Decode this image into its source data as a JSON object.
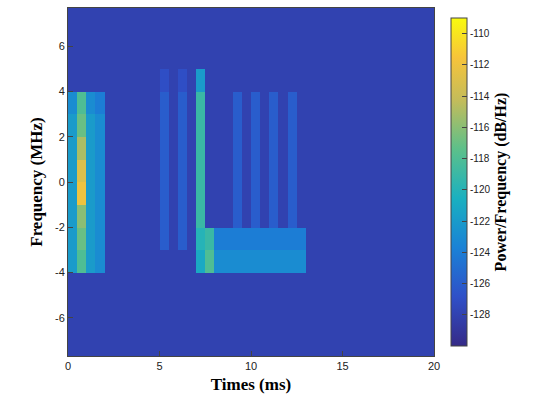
{
  "chart_data": {
    "type": "heatmap",
    "x_label": "Times (ms)",
    "y_label": "Frequency (MHz)",
    "colorbar_title": "Power/Frequency (dB/Hz)",
    "xlim": [
      0,
      20
    ],
    "xticks": [
      0,
      5,
      10,
      15,
      20
    ],
    "ylim": [
      -7.68,
      7.68
    ],
    "yticks": [
      -6,
      -4,
      -2,
      0,
      2,
      4,
      6
    ],
    "zlim": [
      -130,
      -109
    ],
    "zticks": [
      -128,
      -126,
      -124,
      -122,
      -120,
      -118,
      -116,
      -114,
      -112,
      -110
    ],
    "x": [
      0.25,
      0.75,
      1.25,
      1.75,
      2.25,
      2.75,
      3.25,
      3.75,
      4.25,
      4.75,
      5.25,
      5.75,
      6.25,
      6.75,
      7.25,
      7.75,
      8.25,
      8.75,
      9.25,
      9.75,
      10.25,
      10.75,
      11.25,
      11.75,
      12.25,
      12.75,
      13.25,
      13.75,
      14.25,
      14.75,
      15.25,
      15.75,
      16.25,
      16.75,
      17.25,
      17.75,
      18.25,
      18.75,
      19.25,
      19.75
    ],
    "y": [
      -7.5,
      -6.5,
      -5.5,
      -4.5,
      -3.5,
      -2.5,
      -1.5,
      -0.5,
      0.5,
      1.5,
      2.5,
      3.5,
      4.5,
      5.5,
      6.5,
      7.5
    ],
    "z": [
      [
        -128,
        -128,
        -128,
        -128,
        -128,
        -128,
        -128,
        -128,
        -128,
        -128,
        -128,
        -128,
        -128,
        -128,
        -128,
        -128,
        -128,
        -128,
        -128,
        -128,
        -128,
        -128,
        -128,
        -128,
        -128,
        -128,
        -128,
        -128,
        -128,
        -128,
        -128,
        -128,
        -128,
        -128,
        -128,
        -128,
        -128,
        -128,
        -128,
        -128
      ],
      [
        -128,
        -128,
        -128,
        -128,
        -128,
        -128,
        -128,
        -128,
        -128,
        -128,
        -128,
        -128,
        -128,
        -128,
        -128,
        -128,
        -128,
        -128,
        -128,
        -128,
        -128,
        -128,
        -128,
        -128,
        -128,
        -128,
        -128,
        -128,
        -128,
        -128,
        -128,
        -128,
        -128,
        -128,
        -128,
        -128,
        -128,
        -128,
        -128,
        -128
      ],
      [
        -128,
        -128,
        -128,
        -128,
        -128,
        -128,
        -128,
        -128,
        -128,
        -128,
        -128,
        -128,
        -128,
        -128,
        -128,
        -128,
        -128,
        -128,
        -128,
        -128,
        -128,
        -128,
        -128,
        -128,
        -128,
        -128,
        -128,
        -128,
        -128,
        -128,
        -128,
        -128,
        -128,
        -128,
        -128,
        -128,
        -128,
        -128,
        -128,
        -128
      ],
      [
        -128,
        -128,
        -128,
        -128,
        -128,
        -128,
        -128,
        -128,
        -128,
        -128,
        -128,
        -128,
        -128,
        -128,
        -128,
        -128,
        -128,
        -128,
        -128,
        -128,
        -128,
        -128,
        -128,
        -128,
        -128,
        -128,
        -128,
        -128,
        -128,
        -128,
        -128,
        -128,
        -128,
        -128,
        -128,
        -128,
        -128,
        -128,
        -128,
        -128
      ],
      [
        -122,
        -118,
        -122,
        -123,
        -128,
        -128,
        -128,
        -128,
        -128,
        -128,
        -128,
        -128,
        -128,
        -128,
        -121,
        -118,
        -123,
        -123,
        -123,
        -123,
        -123,
        -123,
        -123,
        -123,
        -123,
        -123,
        -128,
        -128,
        -128,
        -128,
        -128,
        -128,
        -128,
        -128,
        -128,
        -128,
        -128,
        -128,
        -128,
        -128
      ],
      [
        -122,
        -117,
        -122,
        -123,
        -128,
        -128,
        -128,
        -128,
        -128,
        -128,
        -126,
        -128,
        -126,
        -128,
        -120,
        -119,
        -124,
        -124,
        -124,
        -124,
        -124,
        -124,
        -124,
        -124,
        -124,
        -124,
        -128,
        -128,
        -128,
        -128,
        -128,
        -128,
        -128,
        -128,
        -128,
        -128,
        -128,
        -128,
        -128,
        -128
      ],
      [
        -122,
        -116,
        -122,
        -123,
        -128,
        -128,
        -128,
        -128,
        -128,
        -128,
        -126,
        -128,
        -126,
        -128,
        -119,
        -128,
        -128,
        -128,
        -126,
        -128,
        -126,
        -128,
        -126,
        -128,
        -126,
        -128,
        -128,
        -128,
        -128,
        -128,
        -128,
        -128,
        -128,
        -128,
        -128,
        -128,
        -128,
        -128,
        -128,
        -128
      ],
      [
        -122,
        -112,
        -122,
        -123,
        -128,
        -128,
        -128,
        -128,
        -128,
        -128,
        -126,
        -128,
        -126,
        -128,
        -119,
        -128,
        -128,
        -128,
        -126,
        -128,
        -126,
        -128,
        -126,
        -128,
        -126,
        -128,
        -128,
        -128,
        -128,
        -128,
        -128,
        -128,
        -128,
        -128,
        -128,
        -128,
        -128,
        -128,
        -128,
        -128
      ],
      [
        -122,
        -113,
        -122,
        -123,
        -128,
        -128,
        -128,
        -128,
        -128,
        -128,
        -126,
        -128,
        -126,
        -128,
        -119,
        -128,
        -128,
        -128,
        -126,
        -128,
        -126,
        -128,
        -126,
        -128,
        -126,
        -128,
        -128,
        -128,
        -128,
        -128,
        -128,
        -128,
        -128,
        -128,
        -128,
        -128,
        -128,
        -128,
        -128,
        -128
      ],
      [
        -122,
        -115,
        -122,
        -123,
        -128,
        -128,
        -128,
        -128,
        -128,
        -128,
        -126,
        -128,
        -126,
        -128,
        -119,
        -128,
        -128,
        -128,
        -126,
        -128,
        -126,
        -128,
        -126,
        -128,
        -126,
        -128,
        -128,
        -128,
        -128,
        -128,
        -128,
        -128,
        -128,
        -128,
        -128,
        -128,
        -128,
        -128,
        -128,
        -128
      ],
      [
        -122,
        -117,
        -122,
        -123,
        -128,
        -128,
        -128,
        -128,
        -128,
        -128,
        -126,
        -128,
        -126,
        -128,
        -119,
        -128,
        -128,
        -128,
        -126,
        -128,
        -126,
        -128,
        -126,
        -128,
        -126,
        -128,
        -128,
        -128,
        -128,
        -128,
        -128,
        -128,
        -128,
        -128,
        -128,
        -128,
        -128,
        -128,
        -128,
        -128
      ],
      [
        -123,
        -118,
        -123,
        -124,
        -128,
        -128,
        -128,
        -128,
        -128,
        -128,
        -126,
        -128,
        -126,
        -128,
        -119,
        -128,
        -128,
        -128,
        -126,
        -128,
        -126,
        -128,
        -126,
        -128,
        -126,
        -128,
        -128,
        -128,
        -128,
        -128,
        -128,
        -128,
        -128,
        -128,
        -128,
        -128,
        -128,
        -128,
        -128,
        -128
      ],
      [
        -128,
        -128,
        -128,
        -128,
        -128,
        -128,
        -128,
        -128,
        -128,
        -128,
        -127,
        -128,
        -127,
        -128,
        -122,
        -128,
        -128,
        -128,
        -128,
        -128,
        -128,
        -128,
        -128,
        -128,
        -128,
        -128,
        -128,
        -128,
        -128,
        -128,
        -128,
        -128,
        -128,
        -128,
        -128,
        -128,
        -128,
        -128,
        -128,
        -128
      ],
      [
        -128,
        -128,
        -128,
        -128,
        -128,
        -128,
        -128,
        -128,
        -128,
        -128,
        -128,
        -128,
        -128,
        -128,
        -128,
        -128,
        -128,
        -128,
        -128,
        -128,
        -128,
        -128,
        -128,
        -128,
        -128,
        -128,
        -128,
        -128,
        -128,
        -128,
        -128,
        -128,
        -128,
        -128,
        -128,
        -128,
        -128,
        -128,
        -128,
        -128
      ],
      [
        -128,
        -128,
        -128,
        -128,
        -128,
        -128,
        -128,
        -128,
        -128,
        -128,
        -128,
        -128,
        -128,
        -128,
        -128,
        -128,
        -128,
        -128,
        -128,
        -128,
        -128,
        -128,
        -128,
        -128,
        -128,
        -128,
        -128,
        -128,
        -128,
        -128,
        -128,
        -128,
        -128,
        -128,
        -128,
        -128,
        -128,
        -128,
        -128,
        -128
      ],
      [
        -128,
        -128,
        -128,
        -128,
        -128,
        -128,
        -128,
        -128,
        -128,
        -128,
        -128,
        -128,
        -128,
        -128,
        -128,
        -128,
        -128,
        -128,
        -128,
        -128,
        -128,
        -128,
        -128,
        -128,
        -128,
        -128,
        -128,
        -128,
        -128,
        -128,
        -128,
        -128,
        -128,
        -128,
        -128,
        -128,
        -128,
        -128,
        -128,
        -128
      ]
    ]
  }
}
